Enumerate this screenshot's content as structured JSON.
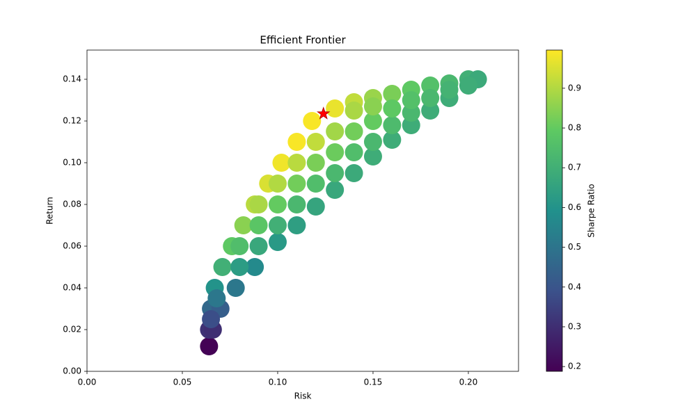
{
  "chart_data": {
    "type": "scatter",
    "title": "Efficient Frontier",
    "x_label": "Risk",
    "y_label": "Return",
    "colorbar_label": "Sharpe Ratio",
    "x": [
      0.064,
      0.064,
      0.065,
      0.067,
      0.071,
      0.076,
      0.082,
      0.088,
      0.095,
      0.102,
      0.11,
      0.118,
      0.13,
      0.14,
      0.15,
      0.16,
      0.17,
      0.18,
      0.19,
      0.2,
      0.205,
      0.066,
      0.07,
      0.078,
      0.088,
      0.1,
      0.11,
      0.12,
      0.13,
      0.14,
      0.15,
      0.16,
      0.17,
      0.18,
      0.19,
      0.2,
      0.08,
      0.08,
      0.09,
      0.09,
      0.09,
      0.1,
      0.1,
      0.1,
      0.11,
      0.11,
      0.11,
      0.12,
      0.12,
      0.12,
      0.13,
      0.13,
      0.13,
      0.14,
      0.14,
      0.14,
      0.15,
      0.15,
      0.15,
      0.16,
      0.16,
      0.17,
      0.17,
      0.18,
      0.19,
      0.065,
      0.068
    ],
    "values": [
      0.012,
      0.02,
      0.03,
      0.04,
      0.05,
      0.06,
      0.07,
      0.08,
      0.09,
      0.1,
      0.11,
      0.12,
      0.126,
      0.129,
      0.131,
      0.133,
      0.135,
      0.137,
      0.138,
      0.14,
      0.14,
      0.02,
      0.03,
      0.04,
      0.05,
      0.062,
      0.07,
      0.079,
      0.087,
      0.095,
      0.103,
      0.111,
      0.118,
      0.125,
      0.131,
      0.137,
      0.05,
      0.06,
      0.06,
      0.07,
      0.08,
      0.07,
      0.08,
      0.09,
      0.08,
      0.09,
      0.1,
      0.09,
      0.1,
      0.11,
      0.095,
      0.105,
      0.115,
      0.105,
      0.115,
      0.125,
      0.11,
      0.12,
      0.127,
      0.118,
      0.126,
      0.124,
      0.13,
      0.131,
      0.135,
      0.025,
      0.035
    ],
    "c": [
      0.19,
      0.31,
      0.46,
      0.6,
      0.7,
      0.79,
      0.85,
      0.91,
      0.95,
      0.98,
      0.99,
      0.99,
      0.97,
      0.92,
      0.87,
      0.83,
      0.79,
      0.76,
      0.73,
      0.7,
      0.68,
      0.3,
      0.43,
      0.51,
      0.57,
      0.62,
      0.64,
      0.66,
      0.67,
      0.68,
      0.69,
      0.69,
      0.69,
      0.69,
      0.69,
      0.69,
      0.63,
      0.75,
      0.67,
      0.78,
      0.89,
      0.7,
      0.8,
      0.9,
      0.73,
      0.82,
      0.91,
      0.75,
      0.83,
      0.92,
      0.73,
      0.81,
      0.88,
      0.75,
      0.82,
      0.89,
      0.73,
      0.8,
      0.85,
      0.74,
      0.79,
      0.73,
      0.76,
      0.73,
      0.71,
      0.38,
      0.51
    ],
    "colormap": "viridis",
    "highlight": {
      "x": 0.124,
      "y": 0.1235,
      "color": "#ff0000"
    },
    "xlim": [
      0,
      0.2263
    ],
    "ylim": [
      0,
      0.154
    ],
    "clim": [
      0.188,
      0.996
    ],
    "xticks": [
      {
        "value": 0,
        "label": "0.00"
      },
      {
        "value": 0.05,
        "label": "0.05"
      },
      {
        "value": 0.1,
        "label": "0.10"
      },
      {
        "value": 0.15,
        "label": "0.15"
      },
      {
        "value": 0.2,
        "label": "0.20"
      }
    ],
    "yticks": [
      {
        "value": 0,
        "label": "0.00"
      },
      {
        "value": 0.02,
        "label": "0.02"
      },
      {
        "value": 0.04,
        "label": "0.04"
      },
      {
        "value": 0.06,
        "label": "0.06"
      },
      {
        "value": 0.08,
        "label": "0.08"
      },
      {
        "value": 0.1,
        "label": "0.10"
      },
      {
        "value": 0.12,
        "label": "0.12"
      },
      {
        "value": 0.14,
        "label": "0.14"
      }
    ],
    "cticks": [
      0.2,
      0.3,
      0.4,
      0.5,
      0.6,
      0.7,
      0.8,
      0.9
    ]
  }
}
